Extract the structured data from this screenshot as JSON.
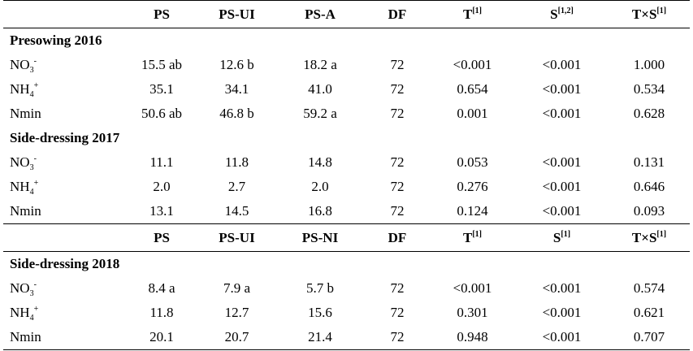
{
  "header1": [
    "PS",
    "PS-UI",
    "PS-A",
    "DF",
    "T",
    "S",
    "T×S"
  ],
  "header1_sup": [
    "",
    "",
    "",
    "",
    "[1]",
    "[1,2]",
    "[1]"
  ],
  "header2": [
    "PS",
    "PS-UI",
    "PS-NI",
    "DF",
    "T",
    "S",
    "T×S"
  ],
  "header2_sup": [
    "",
    "",
    "",
    "",
    "[1]",
    "[1]",
    "[1]"
  ],
  "sections": [
    {
      "title": "Presowing 2016",
      "rows": [
        {
          "label": "NO",
          "sub": "3",
          "sup": "-",
          "values": [
            "15.5 ab",
            "12.6 b",
            "18.2 a",
            "72",
            "<0.001",
            "<0.001",
            "1.000"
          ]
        },
        {
          "label": "NH",
          "sub": "4",
          "sup": "+",
          "values": [
            "35.1",
            "34.1",
            "41.0",
            "72",
            "0.654",
            "<0.001",
            "0.534"
          ]
        },
        {
          "label": "Nmin",
          "sub": "",
          "sup": "",
          "values": [
            "50.6 ab",
            "46.8 b",
            "59.2 a",
            "72",
            "0.001",
            "<0.001",
            "0.628"
          ]
        }
      ]
    },
    {
      "title": "Side-dressing 2017",
      "rows": [
        {
          "label": "NO",
          "sub": "3",
          "sup": "-",
          "values": [
            "11.1",
            "11.8",
            "14.8",
            "72",
            "0.053",
            "<0.001",
            "0.131"
          ]
        },
        {
          "label": "NH",
          "sub": "4",
          "sup": "+",
          "values": [
            "2.0",
            "2.7",
            "2.0",
            "72",
            "0.276",
            "<0.001",
            "0.646"
          ]
        },
        {
          "label": "Nmin",
          "sub": "",
          "sup": "",
          "values": [
            "13.1",
            "14.5",
            "16.8",
            "72",
            "0.124",
            "<0.001",
            "0.093"
          ]
        }
      ]
    },
    {
      "title": "Side-dressing 2018",
      "rows": [
        {
          "label": "NO",
          "sub": "3",
          "sup": "-",
          "values": [
            "8.4 a",
            "7.9 a",
            "5.7 b",
            "72",
            "<0.001",
            "<0.001",
            "0.574"
          ]
        },
        {
          "label": "NH",
          "sub": "4",
          "sup": "+",
          "values": [
            "11.8",
            "12.7",
            "15.6",
            "72",
            "0.301",
            "<0.001",
            "0.621"
          ]
        },
        {
          "label": "Nmin",
          "sub": "",
          "sup": "",
          "values": [
            "20.1",
            "20.7",
            "21.4",
            "72",
            "0.948",
            "<0.001",
            "0.707"
          ]
        }
      ]
    }
  ]
}
